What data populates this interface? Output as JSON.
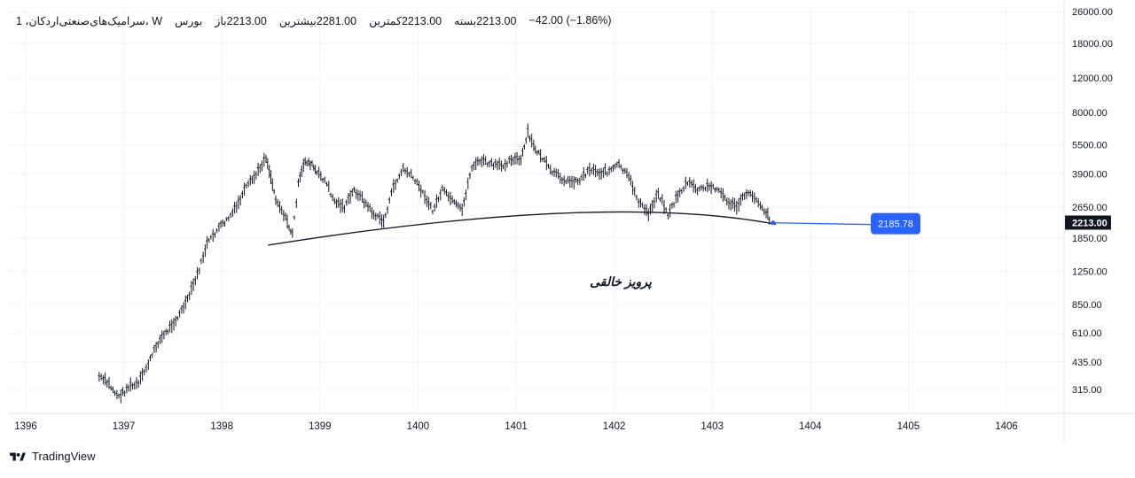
{
  "header": {
    "symbol": "سرامیک‌های‌صنعتی‌اردکان، 1، W",
    "exchange": "بورس",
    "open_label": "باز",
    "open": "2213.00",
    "high_label": "بیشترین",
    "high": "2281.00",
    "low_label": "کمترین",
    "low": "2213.00",
    "close_label": "بسته",
    "close": "2213.00",
    "change": "−42.00",
    "change_pct": "(−1.86%)"
  },
  "annotation_text": "پرویز خالقی",
  "brand": "TradingView",
  "colors": {
    "candle": "#131722",
    "grid": "#f0f3fa",
    "trendline": "#131722",
    "horizontal_ray": "#2962ff",
    "last_price_bg": "#131722",
    "marker_label_bg": "#2962ff"
  },
  "chart_data": {
    "type": "line",
    "scale": "log",
    "price_axis": {
      "ticks": [
        315,
        435,
        610,
        850,
        1250,
        1850,
        2650,
        3900,
        5500,
        8000,
        12000,
        18000,
        26000
      ],
      "tick_labels": [
        "315.00",
        "435.00",
        "610.00",
        "850.00",
        "1250.00",
        "1850.00",
        "2650.00",
        "3900.00",
        "5500.00",
        "8000.00",
        "12000.00",
        "18000.00",
        "26000.00"
      ]
    },
    "time_axis": {
      "ticks": [
        1396,
        1397,
        1398,
        1399,
        1400,
        1401,
        1402,
        1403,
        1404,
        1405,
        1406
      ],
      "tick_labels": [
        "1396",
        "1397",
        "1398",
        "1399",
        "1400",
        "1401",
        "1402",
        "1403",
        "1404",
        "1405",
        "1406"
      ]
    },
    "last_price": 2213.0,
    "last_price_label": "2213.00",
    "marker_value": 2185.78,
    "marker_label": "2185.78",
    "series": [
      {
        "x": [
          1396.75,
          1396.85,
          1396.95,
          1397.05,
          1397.15,
          1397.25,
          1397.35,
          1397.45,
          1397.55,
          1397.65,
          1397.75,
          1397.85,
          1397.95,
          1398.05,
          1398.15,
          1398.25,
          1398.35,
          1398.45,
          1398.5,
          1398.55,
          1398.65,
          1398.72,
          1398.78,
          1398.85,
          1398.92,
          1398.97,
          1399.05,
          1399.15,
          1399.25,
          1399.35,
          1399.45,
          1399.55,
          1399.65,
          1399.75,
          1399.85,
          1399.95,
          1400.05,
          1400.15,
          1400.25,
          1400.35,
          1400.45,
          1400.55,
          1400.65,
          1400.75,
          1400.85,
          1400.95,
          1401.05,
          1401.12,
          1401.18,
          1401.25,
          1401.35,
          1401.45,
          1401.55,
          1401.65,
          1401.75,
          1401.85,
          1401.95,
          1402.05,
          1402.15,
          1402.25,
          1402.35,
          1402.45,
          1402.55,
          1402.65,
          1402.75,
          1402.85,
          1402.95,
          1403.05,
          1403.15,
          1403.25,
          1403.35,
          1403.45,
          1403.55,
          1403.6
        ],
        "values": [
          360,
          330,
          285,
          320,
          330,
          420,
          540,
          620,
          720,
          880,
          1180,
          1700,
          2000,
          2250,
          2600,
          3300,
          3800,
          4700,
          3700,
          2900,
          2300,
          1900,
          3400,
          4500,
          4300,
          3900,
          3600,
          2800,
          2600,
          3200,
          2800,
          2400,
          2200,
          3300,
          4100,
          3700,
          3100,
          2500,
          3200,
          2800,
          2500,
          4200,
          4500,
          4300,
          4200,
          4600,
          4500,
          6200,
          5300,
          4800,
          4000,
          3700,
          3500,
          3600,
          4100,
          3900,
          4000,
          4300,
          3700,
          2800,
          2400,
          3100,
          2400,
          3000,
          3500,
          3200,
          3300,
          3300,
          2800,
          2600,
          3100,
          2900,
          2450,
          2213
        ]
      }
    ]
  }
}
